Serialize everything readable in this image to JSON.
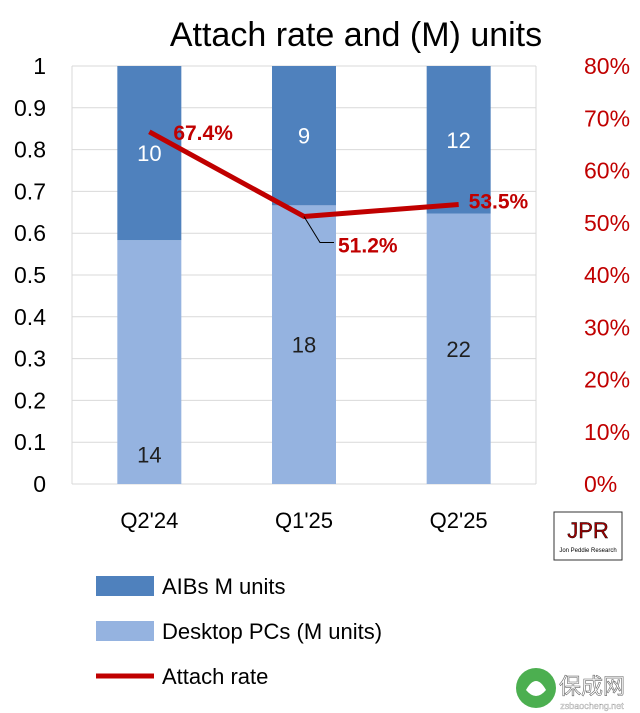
{
  "chart_data": {
    "type": "bar",
    "stacked": "percent",
    "title": "Attach rate and (M) units",
    "categories": [
      "Q2'24",
      "Q1'25",
      "Q2'25"
    ],
    "series": [
      {
        "name": "Desktop PCs (M units)",
        "values": [
          14,
          18,
          22
        ],
        "color": "#95b3e0"
      },
      {
        "name": "AIBs M units",
        "values": [
          10,
          9,
          12
        ],
        "color": "#4f81bd"
      }
    ],
    "line_series": {
      "name": "Attach rate",
      "values": [
        67.4,
        51.2,
        53.5
      ],
      "labels": [
        "67.4%",
        "51.2%",
        "53.5%"
      ],
      "color": "#c00000",
      "axis": "secondary"
    },
    "y_left": {
      "ylim": [
        0,
        1
      ],
      "ticks": [
        "0",
        "0.1",
        "0.2",
        "0.3",
        "0.4",
        "0.5",
        "0.6",
        "0.7",
        "0.8",
        "0.9",
        "1"
      ]
    },
    "y_right": {
      "ylim": [
        0,
        80
      ],
      "ticks": [
        "0%",
        "10%",
        "20%",
        "30%",
        "40%",
        "50%",
        "60%",
        "70%",
        "80%"
      ],
      "color": "#c00000"
    },
    "grid": true,
    "legend_position": "bottom-left"
  },
  "logo": {
    "text": "JPR",
    "subtext": "Jon Peddie Research"
  },
  "watermark": {
    "text": "保成网",
    "url": "zsbaocheng.net"
  }
}
